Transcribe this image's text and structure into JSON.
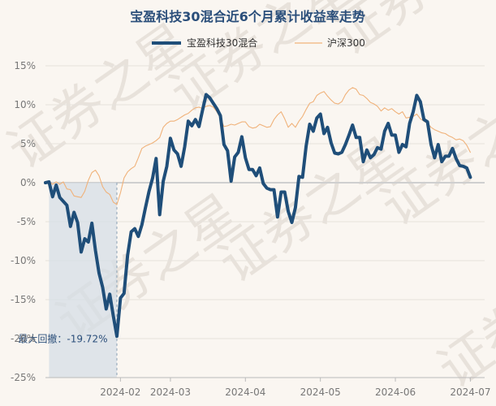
{
  "chart_data": {
    "type": "line",
    "title": "宝盈科技30混合近6个月累计收益率走势",
    "xlabel": "",
    "ylabel": "",
    "ylim": [
      -25,
      15
    ],
    "yticks": [
      15,
      10,
      5,
      0,
      -5,
      -10,
      -15,
      -20,
      -25
    ],
    "ytick_labels": [
      "15%",
      "10%",
      "5%",
      "0%",
      "-5%",
      "-10%",
      "-15%",
      "-20%",
      "-25%"
    ],
    "x_ticks": [
      {
        "label": "2024-02",
        "index": 21
      },
      {
        "label": "2024-03",
        "index": 35
      },
      {
        "label": "2024-04",
        "index": 56
      },
      {
        "label": "2024-05",
        "index": 77
      },
      {
        "label": "2024-06",
        "index": 98
      },
      {
        "label": "2024-07",
        "index": 119
      }
    ],
    "n_points": 124,
    "legend": [
      "宝盈科技30混合",
      "沪深300"
    ],
    "series": [
      {
        "name": "宝盈科技30混合",
        "color": "#1f4e79",
        "values": [
          0,
          0.1,
          -1.8,
          -0.3,
          -1.9,
          -2.4,
          -2.9,
          -5.6,
          -3.8,
          -5.1,
          -8.9,
          -7.2,
          -7.6,
          -5.2,
          -8.7,
          -11.6,
          -13.4,
          -16.2,
          -14.3,
          -17.1,
          -19.7,
          -14.8,
          -14.2,
          -9.3,
          -6.3,
          -5.9,
          -6.9,
          -5.4,
          -3.2,
          -1.1,
          0.6,
          3.1,
          -4.1,
          0.2,
          2.1,
          5.7,
          4.2,
          3.7,
          2.1,
          4.6,
          7.9,
          7.3,
          8.1,
          7.2,
          9.3,
          11.3,
          10.9,
          10.2,
          9.5,
          8.6,
          4.9,
          4.1,
          0.2,
          3.3,
          3.9,
          5.9,
          3.2,
          1.7,
          1.7,
          0.9,
          1.9,
          -0.1,
          -0.7,
          -0.9,
          -0.9,
          -4.4,
          -1.2,
          -1.2,
          -3.7,
          -5.1,
          -3.2,
          0.8,
          0.7,
          4.7,
          7.5,
          6.6,
          8.3,
          8.8,
          6.3,
          7.1,
          5.1,
          3.8,
          3.7,
          3.9,
          4.9,
          6.1,
          7.4,
          5.8,
          5.8,
          2.7,
          4.2,
          3.2,
          3.6,
          4.5,
          4.3,
          6.6,
          7.6,
          6.1,
          6.1,
          3.9,
          4.9,
          4.6,
          7.6,
          9.1,
          11.2,
          10.4,
          8.1,
          7.8,
          4.9,
          3.2,
          4.9,
          2.7,
          3.4,
          3.4,
          4.4,
          3.1,
          2.2,
          2.1,
          1.9,
          0.7
        ]
      },
      {
        "name": "沪深300",
        "color": "#f0b27a",
        "values": [
          0,
          0.2,
          -0.2,
          0.1,
          -0.2,
          0.1,
          -0.8,
          -0.9,
          -1.7,
          -1.8,
          -1.9,
          -1.1,
          0.3,
          1.3,
          1.6,
          0.9,
          -0.5,
          -1.2,
          -1.5,
          -2.5,
          -2.8,
          -1.3,
          0.6,
          1.4,
          1.8,
          2.1,
          3.2,
          4.4,
          4.7,
          4.9,
          5.1,
          5.4,
          5.8,
          7.1,
          7.6,
          7.9,
          7.9,
          8.1,
          8.4,
          8.7,
          8.9,
          9.3,
          9.6,
          9.7,
          9.5,
          9.8,
          9.9,
          9.7,
          9.1,
          8.3,
          7.2,
          7.3,
          7.5,
          7.4,
          7.6,
          7.8,
          7.8,
          7.2,
          7.0,
          7.1,
          7.5,
          7.3,
          7.1,
          7.2,
          8.1,
          8.7,
          9.1,
          8.2,
          7.1,
          7.6,
          7.1,
          7.9,
          8.5,
          9.4,
          10.2,
          10.4,
          11.2,
          11.5,
          11.7,
          11.1,
          10.6,
          10.2,
          10.1,
          10.4,
          11.3,
          11.9,
          12.2,
          12.0,
          11.3,
          11.2,
          10.8,
          10.3,
          10.1,
          9.8,
          9.2,
          9.6,
          9.3,
          9.5,
          9.1,
          8.8,
          9.1,
          8.3,
          8.4,
          8.5,
          8.8,
          8.2,
          7.9,
          7.6,
          7.1,
          6.8,
          6.6,
          6.4,
          6.3,
          6.0,
          5.8,
          5.5,
          5.6,
          5.4,
          4.8,
          3.9
        ]
      }
    ],
    "max_drawdown": {
      "label": "最大回撤：-19.72%",
      "start_index": 1,
      "end_index": 20,
      "value": -19.72
    }
  },
  "watermark": "证券之星"
}
